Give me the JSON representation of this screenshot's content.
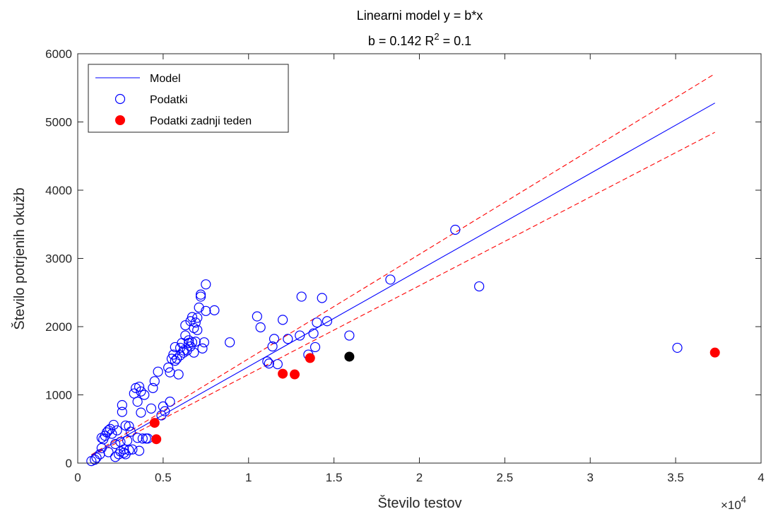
{
  "chart_data": {
    "type": "scatter",
    "title_line1": "Linearni model y = b*x",
    "title_line2": "b = 0.142 R",
    "title_sup": "2",
    "title_line2_rest": " = 0.1",
    "xlabel": "Število testov",
    "ylabel": "Število potrjenih okužb",
    "xlim": [
      0,
      40000
    ],
    "ylim": [
      0,
      6000
    ],
    "x_ticks": [
      0,
      5000,
      10000,
      15000,
      20000,
      25000,
      30000,
      35000,
      40000
    ],
    "x_tick_labels": [
      "0",
      "0.5",
      "1",
      "1.5",
      "2",
      "2.5",
      "3",
      "3.5",
      "4"
    ],
    "y_ticks": [
      0,
      1000,
      2000,
      3000,
      4000,
      5000,
      6000
    ],
    "y_tick_labels": [
      "0",
      "1000",
      "2000",
      "3000",
      "4000",
      "5000",
      "6000"
    ],
    "x_exponent_base": "×10",
    "x_exponent": "4",
    "grid": false,
    "legend_position": "top-left",
    "colors": {
      "model": "#0000ff",
      "data": "#0000ff",
      "last_week": "#ff0000",
      "highlight": "#000000",
      "bounds": "#ff0000"
    },
    "model": {
      "name": "Model",
      "slope": 0.1415,
      "x_range": [
        800,
        37300
      ]
    },
    "bounds": {
      "upper_slope": 0.153,
      "lower_slope": 0.13,
      "x_range": [
        800,
        37300
      ]
    },
    "series": [
      {
        "name": "Podatki",
        "marker": "open-circle",
        "points": [
          [
            800,
            30
          ],
          [
            1000,
            50
          ],
          [
            1100,
            80
          ],
          [
            1300,
            130
          ],
          [
            1400,
            220
          ],
          [
            1400,
            370
          ],
          [
            1500,
            350
          ],
          [
            1600,
            400
          ],
          [
            1700,
            450
          ],
          [
            1800,
            160
          ],
          [
            1800,
            480
          ],
          [
            1900,
            500
          ],
          [
            2000,
            430
          ],
          [
            2100,
            560
          ],
          [
            2200,
            90
          ],
          [
            2200,
            280
          ],
          [
            2300,
            480
          ],
          [
            2400,
            130
          ],
          [
            2500,
            170
          ],
          [
            2500,
            310
          ],
          [
            2600,
            750
          ],
          [
            2600,
            850
          ],
          [
            2700,
            150
          ],
          [
            2700,
            200
          ],
          [
            2800,
            550
          ],
          [
            2800,
            130
          ],
          [
            2900,
            330
          ],
          [
            3000,
            540
          ],
          [
            3000,
            190
          ],
          [
            3100,
            460
          ],
          [
            3200,
            200
          ],
          [
            3300,
            1020
          ],
          [
            3400,
            1100
          ],
          [
            3500,
            900
          ],
          [
            3500,
            370
          ],
          [
            3600,
            1120
          ],
          [
            3600,
            180
          ],
          [
            3700,
            1050
          ],
          [
            3700,
            740
          ],
          [
            3800,
            360
          ],
          [
            3900,
            1000
          ],
          [
            4000,
            360
          ],
          [
            4100,
            360
          ],
          [
            4300,
            800
          ],
          [
            4400,
            1100
          ],
          [
            4500,
            1200
          ],
          [
            4700,
            1340
          ],
          [
            4900,
            700
          ],
          [
            5000,
            830
          ],
          [
            5100,
            760
          ],
          [
            5300,
            1400
          ],
          [
            5400,
            1330
          ],
          [
            5400,
            900
          ],
          [
            5500,
            1530
          ],
          [
            5600,
            1590
          ],
          [
            5700,
            1700
          ],
          [
            5700,
            1500
          ],
          [
            5800,
            1530
          ],
          [
            5900,
            1300
          ],
          [
            6000,
            1690
          ],
          [
            6000,
            1580
          ],
          [
            6100,
            1760
          ],
          [
            6200,
            1650
          ],
          [
            6200,
            1620
          ],
          [
            6300,
            2020
          ],
          [
            6300,
            1870
          ],
          [
            6400,
            1650
          ],
          [
            6500,
            1800
          ],
          [
            6500,
            1760
          ],
          [
            6600,
            2080
          ],
          [
            6600,
            1710
          ],
          [
            6700,
            2140
          ],
          [
            6700,
            1770
          ],
          [
            6800,
            1980
          ],
          [
            6800,
            1620
          ],
          [
            6900,
            2060
          ],
          [
            6900,
            1780
          ],
          [
            7000,
            2130
          ],
          [
            7000,
            1950
          ],
          [
            7100,
            2280
          ],
          [
            7200,
            2440
          ],
          [
            7200,
            2470
          ],
          [
            7300,
            1680
          ],
          [
            7400,
            1770
          ],
          [
            7500,
            2620
          ],
          [
            7500,
            2230
          ],
          [
            8000,
            2240
          ],
          [
            8900,
            1770
          ],
          [
            10500,
            2150
          ],
          [
            10700,
            1990
          ],
          [
            11100,
            1490
          ],
          [
            11200,
            1460
          ],
          [
            11400,
            1710
          ],
          [
            11500,
            1820
          ],
          [
            11700,
            1450
          ],
          [
            12000,
            2100
          ],
          [
            12300,
            1820
          ],
          [
            13000,
            1870
          ],
          [
            13100,
            2440
          ],
          [
            13500,
            1590
          ],
          [
            13800,
            1900
          ],
          [
            13900,
            1700
          ],
          [
            14000,
            2060
          ],
          [
            14300,
            2420
          ],
          [
            14600,
            2080
          ],
          [
            15900,
            1870
          ],
          [
            18300,
            2690
          ],
          [
            22100,
            3420
          ],
          [
            23500,
            2590
          ],
          [
            35100,
            1690
          ]
        ]
      },
      {
        "name": "Podatki zadnji teden",
        "marker": "filled-circle",
        "points": [
          [
            4500,
            590
          ],
          [
            4600,
            350
          ],
          [
            12000,
            1310
          ],
          [
            12700,
            1300
          ],
          [
            13600,
            1540
          ],
          [
            37300,
            1620
          ]
        ]
      }
    ],
    "highlight_points": [
      [
        15900,
        1560
      ]
    ]
  }
}
